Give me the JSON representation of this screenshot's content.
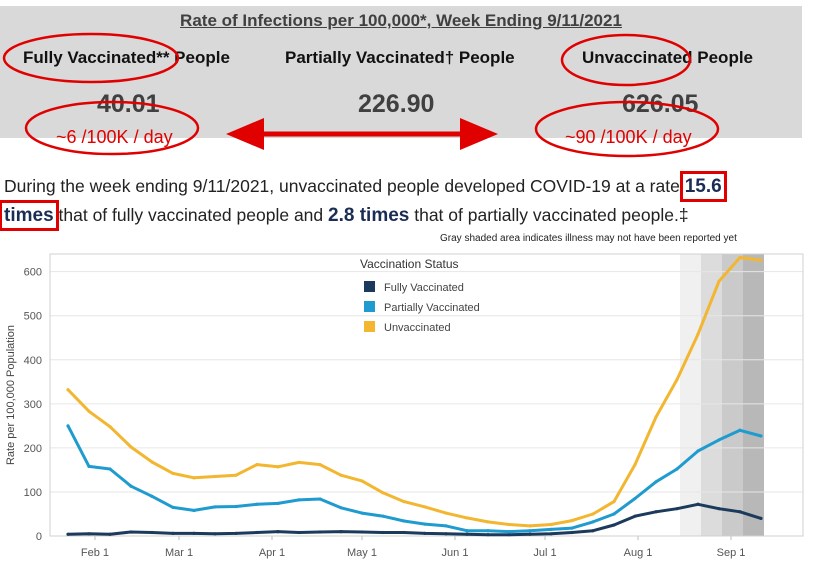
{
  "header": {
    "title": "Rate of Infections per 100,000*, Week Ending 9/11/2021",
    "groups": [
      {
        "label": "Fully Vaccinated** People",
        "value": "40.01",
        "note": "~6 /100K / day"
      },
      {
        "label": "Partially Vaccinated† People",
        "value": "226.90",
        "note": ""
      },
      {
        "label": "Unvaccinated People",
        "value": "626.05",
        "note": "~90 /100K / day"
      }
    ]
  },
  "summary": {
    "part1": "During the week ending 9/11/2021, unvaccinated people developed COVID-19 at a rate",
    "times1": "15.6",
    "times1_word": "times",
    "part2": "that of fully vaccinated people and",
    "times2": "2.8 times",
    "part3": "that of partially vaccinated people.‡"
  },
  "chart_note": "Gray shaded area indicates illness may not have been reported yet",
  "colors": {
    "fully": "#1b3a5c",
    "partially": "#1f9bcf",
    "unvaccinated": "#f2b630",
    "annotation": "#e00000"
  },
  "chart_data": {
    "type": "line",
    "title": "",
    "xlabel": "",
    "ylabel": "Rate per 100,000 Population",
    "ylim": [
      0,
      640
    ],
    "yticks": [
      0,
      100,
      200,
      300,
      400,
      500,
      600
    ],
    "xlim": [
      "2021-01-17",
      "2021-09-25"
    ],
    "xticks": [
      {
        "label": "Feb 1",
        "date": "2021-02-01"
      },
      {
        "label": "Mar 1",
        "date": "2021-03-01"
      },
      {
        "label": "Apr 1",
        "date": "2021-04-01"
      },
      {
        "label": "May 1",
        "date": "2021-05-01"
      },
      {
        "label": "Jun 1",
        "date": "2021-06-01"
      },
      {
        "label": "Jul 1",
        "date": "2021-07-01"
      },
      {
        "label": "Aug 1",
        "date": "2021-08-01"
      },
      {
        "label": "Sep 1",
        "date": "2021-09-01"
      }
    ],
    "grid": true,
    "legend": {
      "title": "Vaccination Status",
      "position": "top-center"
    },
    "shaded_periods": [
      {
        "start": "2021-08-15",
        "end": "2021-08-22",
        "shade": "#f0f0f0"
      },
      {
        "start": "2021-08-22",
        "end": "2021-08-29",
        "shade": "#dcdcdc"
      },
      {
        "start": "2021-08-29",
        "end": "2021-09-05",
        "shade": "#cacaca"
      },
      {
        "start": "2021-09-05",
        "end": "2021-09-12",
        "shade": "#b8b8b8"
      }
    ],
    "x": [
      "2021-01-23",
      "2021-01-30",
      "2021-02-06",
      "2021-02-13",
      "2021-02-20",
      "2021-02-27",
      "2021-03-06",
      "2021-03-13",
      "2021-03-20",
      "2021-03-27",
      "2021-04-03",
      "2021-04-10",
      "2021-04-17",
      "2021-04-24",
      "2021-05-01",
      "2021-05-08",
      "2021-05-15",
      "2021-05-22",
      "2021-05-29",
      "2021-06-05",
      "2021-06-12",
      "2021-06-19",
      "2021-06-26",
      "2021-07-03",
      "2021-07-10",
      "2021-07-17",
      "2021-07-24",
      "2021-07-31",
      "2021-08-07",
      "2021-08-14",
      "2021-08-21",
      "2021-08-28",
      "2021-09-04",
      "2021-09-11"
    ],
    "series": [
      {
        "name": "Fully Vaccinated",
        "color_key": "fully",
        "values": [
          4,
          5,
          4,
          9,
          8,
          6,
          6,
          5,
          6,
          8,
          10,
          8,
          9,
          10,
          9,
          8,
          8,
          6,
          5,
          4,
          3,
          3,
          4,
          5,
          8,
          12,
          25,
          45,
          55,
          62,
          72,
          62,
          55,
          40
        ]
      },
      {
        "name": "Partially Vaccinated",
        "color_key": "partially",
        "values": [
          250,
          158,
          152,
          113,
          90,
          65,
          58,
          66,
          67,
          72,
          74,
          82,
          84,
          64,
          52,
          45,
          34,
          27,
          23,
          12,
          12,
          10,
          12,
          15,
          18,
          32,
          50,
          85,
          123,
          152,
          193,
          218,
          240,
          227
        ]
      },
      {
        "name": "Unvaccinated",
        "color_key": "unvaccinated",
        "values": [
          332,
          283,
          248,
          202,
          168,
          142,
          132,
          135,
          138,
          162,
          157,
          167,
          162,
          138,
          125,
          98,
          78,
          66,
          52,
          41,
          32,
          26,
          23,
          26,
          35,
          50,
          78,
          162,
          270,
          355,
          458,
          578,
          632,
          626
        ]
      }
    ]
  }
}
